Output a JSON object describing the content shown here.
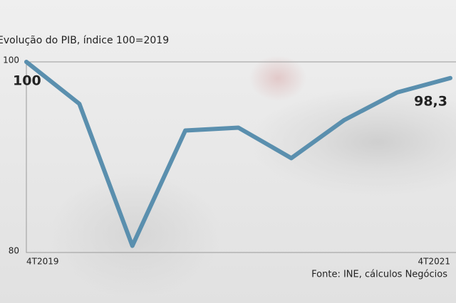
{
  "chart_data": {
    "type": "line",
    "title": "Evolução do PIB, índice 100=2019",
    "source": "Fonte: INE, cálculos Negócios",
    "categories": [
      "4T2019",
      null,
      null,
      null,
      null,
      null,
      null,
      null,
      "4T2021"
    ],
    "series": [
      {
        "name": "PIB",
        "color": "#5a8fae",
        "values": [
          100,
          95.6,
          80.7,
          92.8,
          93.1,
          89.9,
          93.9,
          96.8,
          98.3
        ],
        "value_labels": [
          "100",
          null,
          null,
          null,
          null,
          null,
          null,
          null,
          "98,3"
        ]
      }
    ],
    "ylim": [
      80,
      100
    ],
    "yticks": [
      80,
      100
    ]
  }
}
